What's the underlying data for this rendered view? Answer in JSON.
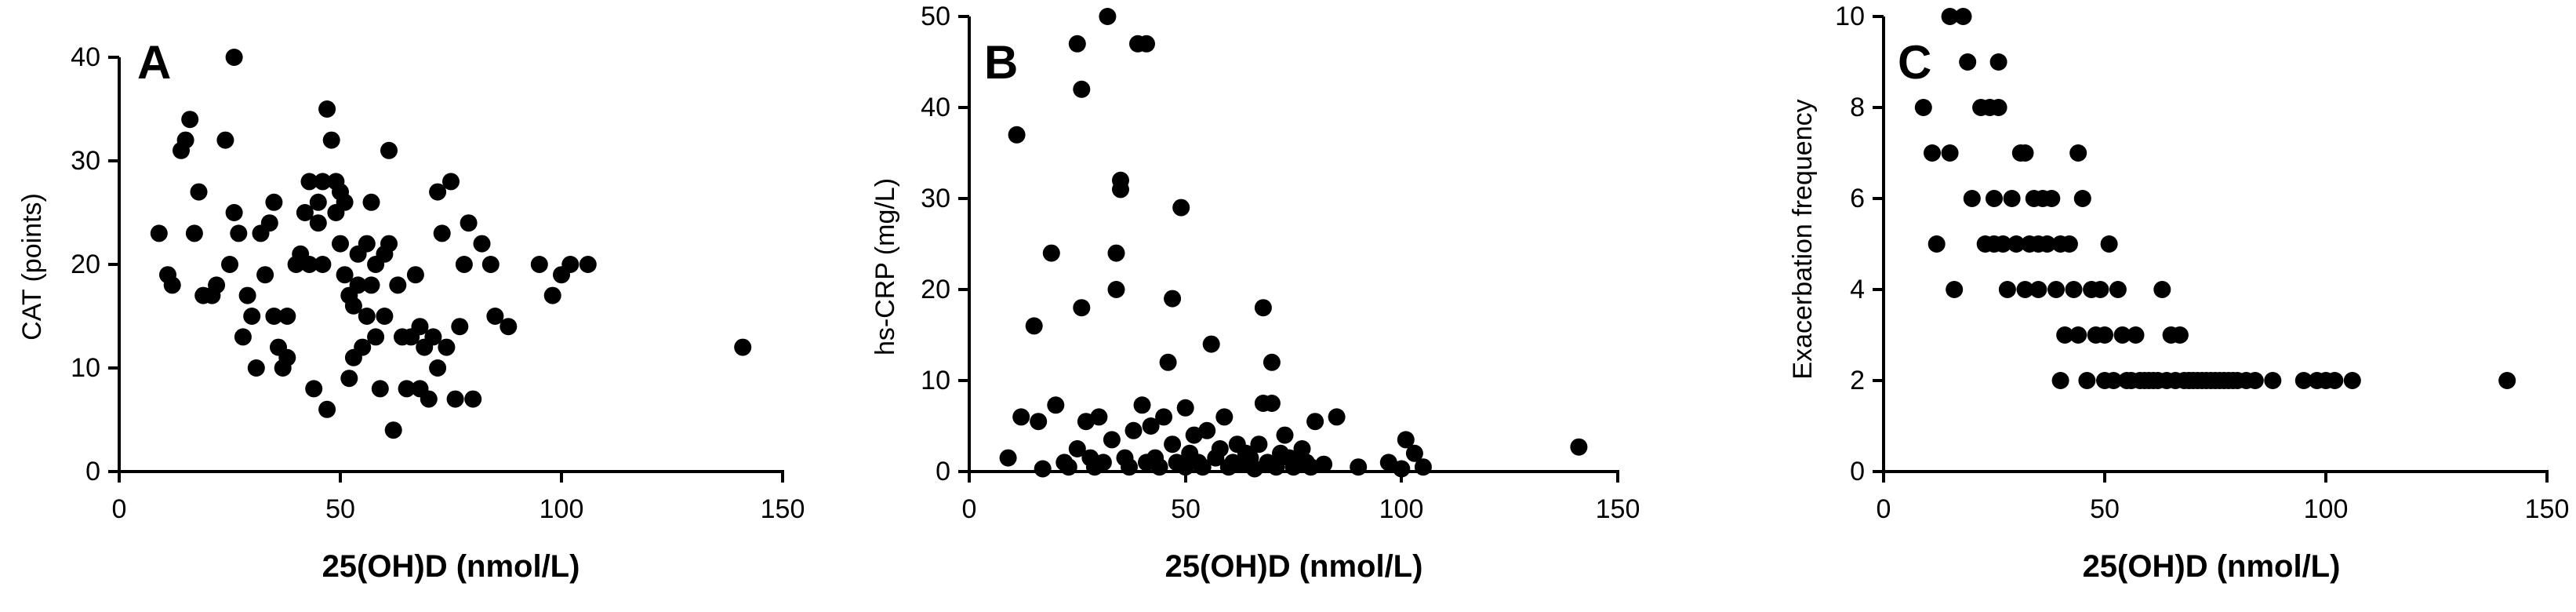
{
  "chart_data": [
    {
      "type": "scatter",
      "panel_label": "A",
      "xlabel": "25(OH)D (nmol/L)",
      "ylabel": "CAT (points)",
      "xlim": [
        0,
        150
      ],
      "ylim": [
        0,
        40
      ],
      "xticks": [
        "0",
        "50",
        "100",
        "150"
      ],
      "yticks": [
        "0",
        "10",
        "20",
        "30",
        "40"
      ],
      "points": [
        [
          9,
          23
        ],
        [
          11,
          19
        ],
        [
          12,
          18
        ],
        [
          14,
          31
        ],
        [
          15,
          32
        ],
        [
          16,
          34
        ],
        [
          17,
          23
        ],
        [
          18,
          27
        ],
        [
          19,
          17
        ],
        [
          21,
          17
        ],
        [
          22,
          18
        ],
        [
          24,
          32
        ],
        [
          25,
          20
        ],
        [
          26,
          40
        ],
        [
          26,
          25
        ],
        [
          27,
          23
        ],
        [
          28,
          13
        ],
        [
          29,
          17
        ],
        [
          30,
          15
        ],
        [
          31,
          10
        ],
        [
          32,
          23
        ],
        [
          33,
          19
        ],
        [
          34,
          24
        ],
        [
          35,
          26
        ],
        [
          35,
          15
        ],
        [
          36,
          12
        ],
        [
          37,
          10
        ],
        [
          38,
          11
        ],
        [
          38,
          15
        ],
        [
          40,
          20
        ],
        [
          41,
          21
        ],
        [
          42,
          25
        ],
        [
          43,
          20
        ],
        [
          43,
          28
        ],
        [
          44,
          8
        ],
        [
          45,
          26
        ],
        [
          45,
          24
        ],
        [
          46,
          28
        ],
        [
          46,
          20
        ],
        [
          47,
          6
        ],
        [
          47,
          35
        ],
        [
          48,
          32
        ],
        [
          49,
          28
        ],
        [
          49,
          25
        ],
        [
          50,
          22
        ],
        [
          50,
          27
        ],
        [
          51,
          26
        ],
        [
          51,
          19
        ],
        [
          52,
          9
        ],
        [
          52,
          17
        ],
        [
          53,
          16
        ],
        [
          53,
          11
        ],
        [
          54,
          21
        ],
        [
          54,
          18
        ],
        [
          55,
          12
        ],
        [
          56,
          22
        ],
        [
          56,
          15
        ],
        [
          57,
          26
        ],
        [
          57,
          18
        ],
        [
          58,
          13
        ],
        [
          58,
          20
        ],
        [
          59,
          8
        ],
        [
          60,
          21
        ],
        [
          60,
          15
        ],
        [
          61,
          31
        ],
        [
          61,
          22
        ],
        [
          62,
          4
        ],
        [
          63,
          18
        ],
        [
          64,
          13
        ],
        [
          65,
          8
        ],
        [
          66,
          13
        ],
        [
          67,
          19
        ],
        [
          68,
          14
        ],
        [
          68,
          8
        ],
        [
          69,
          12
        ],
        [
          70,
          7
        ],
        [
          71,
          13
        ],
        [
          72,
          27
        ],
        [
          72,
          10
        ],
        [
          73,
          23
        ],
        [
          74,
          12
        ],
        [
          75,
          28
        ],
        [
          76,
          7
        ],
        [
          77,
          14
        ],
        [
          78,
          20
        ],
        [
          79,
          24
        ],
        [
          80,
          7
        ],
        [
          82,
          22
        ],
        [
          84,
          20
        ],
        [
          85,
          15
        ],
        [
          88,
          14
        ],
        [
          95,
          20
        ],
        [
          98,
          17
        ],
        [
          100,
          19
        ],
        [
          102,
          20
        ],
        [
          106,
          20
        ],
        [
          141,
          12
        ]
      ]
    },
    {
      "type": "scatter",
      "panel_label": "B",
      "xlabel": "25(OH)D (nmol/L)",
      "ylabel": "hs-CRP (mg/L)",
      "xlim": [
        0,
        150
      ],
      "ylim": [
        0,
        50
      ],
      "xticks": [
        "0",
        "50",
        "100",
        "150"
      ],
      "yticks": [
        "0",
        "10",
        "20",
        "30",
        "40",
        "50"
      ],
      "points": [
        [
          9,
          1.5
        ],
        [
          11,
          37
        ],
        [
          12,
          6
        ],
        [
          15,
          16
        ],
        [
          16,
          5.5
        ],
        [
          17,
          0.3
        ],
        [
          19,
          24
        ],
        [
          20,
          7.3
        ],
        [
          22,
          1
        ],
        [
          23,
          0.5
        ],
        [
          25,
          47
        ],
        [
          25,
          2.5
        ],
        [
          26,
          42
        ],
        [
          26,
          18
        ],
        [
          27,
          5.5
        ],
        [
          28,
          1.5
        ],
        [
          29,
          0.5
        ],
        [
          30,
          6
        ],
        [
          31,
          1
        ],
        [
          32,
          50
        ],
        [
          33,
          3.5
        ],
        [
          34,
          24
        ],
        [
          34,
          20
        ],
        [
          35,
          31
        ],
        [
          35,
          32
        ],
        [
          36,
          1.5
        ],
        [
          37,
          0.5
        ],
        [
          38,
          4.5
        ],
        [
          39,
          47
        ],
        [
          40,
          7.3
        ],
        [
          41,
          1
        ],
        [
          41,
          47
        ],
        [
          42,
          5
        ],
        [
          43,
          1.5
        ],
        [
          44,
          0.5
        ],
        [
          45,
          6
        ],
        [
          46,
          12
        ],
        [
          47,
          19
        ],
        [
          47,
          3
        ],
        [
          48,
          1
        ],
        [
          49,
          29
        ],
        [
          50,
          7
        ],
        [
          50,
          0.5
        ],
        [
          51,
          2
        ],
        [
          52,
          4
        ],
        [
          53,
          1
        ],
        [
          54,
          0.5
        ],
        [
          55,
          4.5
        ],
        [
          56,
          14
        ],
        [
          57,
          1.5
        ],
        [
          58,
          2.5
        ],
        [
          59,
          6
        ],
        [
          60,
          0.5
        ],
        [
          61,
          1
        ],
        [
          62,
          3
        ],
        [
          63,
          0.8
        ],
        [
          64,
          2
        ],
        [
          65,
          1.5
        ],
        [
          66,
          0.3
        ],
        [
          67,
          3
        ],
        [
          68,
          18
        ],
        [
          68,
          7.5
        ],
        [
          69,
          1
        ],
        [
          70,
          12
        ],
        [
          70,
          7.5
        ],
        [
          71,
          0.5
        ],
        [
          72,
          2
        ],
        [
          73,
          4
        ],
        [
          74,
          1.5
        ],
        [
          75,
          0.5
        ],
        [
          76,
          1
        ],
        [
          77,
          2.5
        ],
        [
          78,
          1
        ],
        [
          79,
          0.5
        ],
        [
          80,
          5.5
        ],
        [
          82,
          0.8
        ],
        [
          85,
          6
        ],
        [
          90,
          0.5
        ],
        [
          97,
          1
        ],
        [
          100,
          0.3
        ],
        [
          101,
          3.5
        ],
        [
          103,
          2
        ],
        [
          105,
          0.5
        ],
        [
          141,
          2.7
        ]
      ]
    },
    {
      "type": "scatter",
      "panel_label": "C",
      "xlabel": "25(OH)D (nmol/L)",
      "ylabel": "Exacerbation frequency",
      "xlim": [
        0,
        150
      ],
      "ylim": [
        0,
        10
      ],
      "xticks": [
        "0",
        "50",
        "100",
        "150"
      ],
      "yticks": [
        "0",
        "2",
        "4",
        "6",
        "8",
        "10"
      ],
      "points": [
        [
          9,
          8
        ],
        [
          11,
          7
        ],
        [
          12,
          5
        ],
        [
          15,
          10
        ],
        [
          15,
          7
        ],
        [
          16,
          4
        ],
        [
          18,
          10
        ],
        [
          19,
          9
        ],
        [
          20,
          6
        ],
        [
          22,
          8
        ],
        [
          23,
          5
        ],
        [
          24,
          8
        ],
        [
          25,
          6
        ],
        [
          25,
          5
        ],
        [
          26,
          9
        ],
        [
          26,
          8
        ],
        [
          27,
          5
        ],
        [
          28,
          4
        ],
        [
          29,
          6
        ],
        [
          30,
          5
        ],
        [
          31,
          7
        ],
        [
          32,
          7
        ],
        [
          32,
          4
        ],
        [
          33,
          5
        ],
        [
          34,
          6
        ],
        [
          35,
          4
        ],
        [
          35,
          5
        ],
        [
          36,
          6
        ],
        [
          37,
          5
        ],
        [
          38,
          6
        ],
        [
          39,
          4
        ],
        [
          40,
          5
        ],
        [
          40,
          2
        ],
        [
          41,
          3
        ],
        [
          42,
          5
        ],
        [
          43,
          4
        ],
        [
          44,
          3
        ],
        [
          44,
          7
        ],
        [
          45,
          6
        ],
        [
          46,
          2
        ],
        [
          47,
          4
        ],
        [
          48,
          3
        ],
        [
          49,
          4
        ],
        [
          50,
          2
        ],
        [
          50,
          3
        ],
        [
          51,
          5
        ],
        [
          52,
          2
        ],
        [
          53,
          4
        ],
        [
          54,
          3
        ],
        [
          55,
          2
        ],
        [
          56,
          2
        ],
        [
          57,
          3
        ],
        [
          58,
          2
        ],
        [
          59,
          2
        ],
        [
          60,
          2
        ],
        [
          61,
          2
        ],
        [
          62,
          2
        ],
        [
          63,
          4
        ],
        [
          64,
          2
        ],
        [
          65,
          3
        ],
        [
          66,
          2
        ],
        [
          67,
          3
        ],
        [
          68,
          2
        ],
        [
          69,
          2
        ],
        [
          70,
          2
        ],
        [
          71,
          2
        ],
        [
          72,
          2
        ],
        [
          73,
          2
        ],
        [
          74,
          2
        ],
        [
          75,
          2
        ],
        [
          76,
          2
        ],
        [
          77,
          2
        ],
        [
          78,
          2
        ],
        [
          79,
          2
        ],
        [
          80,
          2
        ],
        [
          82,
          2
        ],
        [
          84,
          2
        ],
        [
          88,
          2
        ],
        [
          95,
          2
        ],
        [
          98,
          2
        ],
        [
          100,
          2
        ],
        [
          102,
          2
        ],
        [
          106,
          2
        ],
        [
          141,
          2
        ]
      ]
    }
  ]
}
